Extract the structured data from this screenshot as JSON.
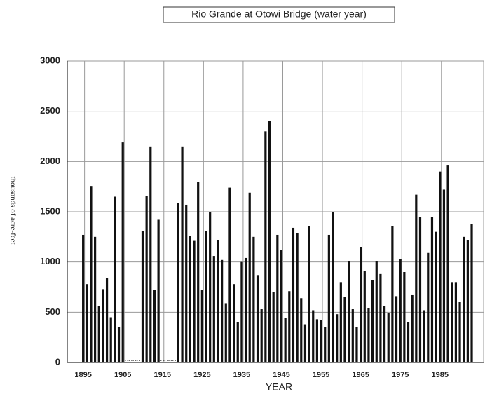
{
  "chart_data": {
    "type": "bar",
    "title": "Rio Grande at Otowi Bridge (water year)",
    "x_label": "YEAR",
    "y_label": "thousands of acre-feet",
    "color": "#111111",
    "grid": true,
    "xlim": [
      1891,
      1996
    ],
    "xticks": [
      1895,
      1905,
      1915,
      1925,
      1935,
      1945,
      1955,
      1965,
      1975,
      1985
    ],
    "ylim": [
      0,
      3000
    ],
    "yticks": [
      0,
      500,
      1000,
      1500,
      2000,
      2500,
      3000
    ],
    "x": [
      1895,
      1896,
      1897,
      1898,
      1899,
      1900,
      1901,
      1902,
      1903,
      1904,
      1905,
      1906,
      1907,
      1908,
      1909,
      1910,
      1911,
      1912,
      1913,
      1914,
      1915,
      1916,
      1917,
      1918,
      1919,
      1920,
      1921,
      1922,
      1923,
      1924,
      1925,
      1926,
      1927,
      1928,
      1929,
      1930,
      1931,
      1932,
      1933,
      1934,
      1935,
      1936,
      1937,
      1938,
      1939,
      1940,
      1941,
      1942,
      1943,
      1944,
      1945,
      1946,
      1947,
      1948,
      1949,
      1950,
      1951,
      1952,
      1953,
      1954,
      1955,
      1956,
      1957,
      1958,
      1959,
      1960,
      1961,
      1962,
      1963,
      1964,
      1965,
      1966,
      1967,
      1968,
      1969,
      1970,
      1971,
      1972,
      1973,
      1974,
      1975,
      1976,
      1977,
      1978,
      1979,
      1980,
      1981,
      1982,
      1983,
      1984,
      1985,
      1986,
      1987,
      1988,
      1989,
      1990,
      1991,
      1992,
      1993
    ],
    "values": [
      1270,
      780,
      1750,
      1250,
      560,
      730,
      840,
      450,
      1650,
      350,
      2190,
      null,
      null,
      null,
      null,
      1310,
      1660,
      2150,
      720,
      1420,
      null,
      null,
      null,
      null,
      1590,
      2150,
      1570,
      1260,
      1210,
      1800,
      720,
      1310,
      1500,
      1060,
      1220,
      1020,
      590,
      1740,
      780,
      400,
      1000,
      1040,
      1690,
      1250,
      870,
      530,
      2300,
      2400,
      700,
      1270,
      1120,
      440,
      710,
      1340,
      1290,
      640,
      380,
      1360,
      520,
      430,
      420,
      350,
      1270,
      1500,
      480,
      800,
      650,
      1010,
      530,
      350,
      1150,
      910,
      540,
      820,
      1010,
      880,
      560,
      490,
      1360,
      660,
      1030,
      900,
      400,
      670,
      1670,
      1450,
      520,
      1090,
      1450,
      1300,
      1900,
      1720,
      1960,
      800,
      800,
      600,
      1250,
      1220,
      1380
    ]
  }
}
